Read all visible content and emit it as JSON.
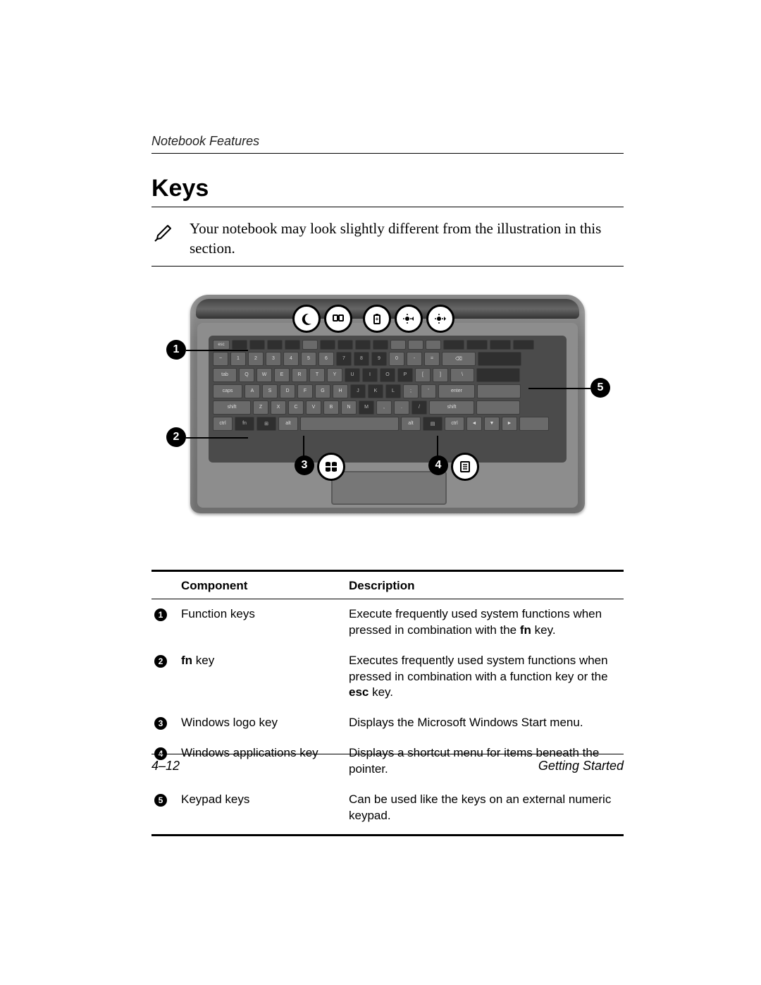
{
  "header": {
    "chapter": "Notebook Features"
  },
  "title": "Keys",
  "note": {
    "icon_name": "pencil-note-icon",
    "text": "Your notebook may look slightly different from the illustration in this section."
  },
  "illustration": {
    "callout_numbers": [
      "1",
      "2",
      "3",
      "4",
      "5"
    ],
    "top_icons": [
      "moon-icon",
      "display-toggle-icon",
      "battery-icon",
      "brightness-down-icon",
      "brightness-up-icon"
    ],
    "bottom_icons": [
      "windows-logo-icon",
      "applications-menu-icon"
    ],
    "colors": {
      "body_gradient_top": "#6b6b6b",
      "body_gradient_bottom": "#6e6e6e",
      "deck": "#8d8d8d",
      "keyboard_bg": "#4b4b4b",
      "key_bg": "#6a6a6a",
      "key_dark_bg": "#2f2f2f",
      "callout_bg": "#000000",
      "callout_fg": "#ffffff",
      "icon_circle_bg": "#ffffff",
      "icon_circle_border": "#000000"
    }
  },
  "table": {
    "headers": {
      "component": "Component",
      "description": "Description"
    },
    "rows": [
      {
        "num": "1",
        "component_plain": "Function keys",
        "component_bold": "",
        "component_suffix": "",
        "description_parts": [
          {
            "text": "Execute frequently used system functions when pressed in combination with the ",
            "bold": false
          },
          {
            "text": "fn",
            "bold": true
          },
          {
            "text": " key.",
            "bold": false
          }
        ]
      },
      {
        "num": "2",
        "component_plain": "",
        "component_bold": "fn",
        "component_suffix": " key",
        "description_parts": [
          {
            "text": "Executes frequently used system functions when pressed in combination with a function key or the ",
            "bold": false
          },
          {
            "text": "esc",
            "bold": true
          },
          {
            "text": " key.",
            "bold": false
          }
        ]
      },
      {
        "num": "3",
        "component_plain": "Windows logo key",
        "component_bold": "",
        "component_suffix": "",
        "description_parts": [
          {
            "text": "Displays the Microsoft Windows Start menu.",
            "bold": false
          }
        ]
      },
      {
        "num": "4",
        "component_plain": "Windows applications key",
        "component_bold": "",
        "component_suffix": "",
        "description_parts": [
          {
            "text": "Displays a shortcut menu for items beneath the pointer.",
            "bold": false
          }
        ]
      },
      {
        "num": "5",
        "component_plain": "Keypad keys",
        "component_bold": "",
        "component_suffix": "",
        "description_parts": [
          {
            "text": "Can be used like the keys on an external numeric keypad.",
            "bold": false
          }
        ]
      }
    ]
  },
  "footer": {
    "page": "4–12",
    "doc": "Getting Started"
  }
}
